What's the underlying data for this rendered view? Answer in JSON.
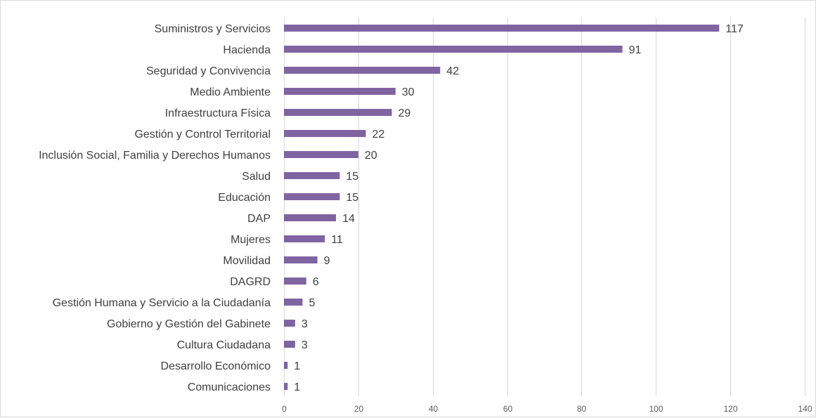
{
  "chart_data": {
    "type": "bar",
    "orientation": "horizontal",
    "title": "",
    "xlabel": "",
    "ylabel": "",
    "categories": [
      "Suministros y Servicios",
      "Hacienda",
      "Seguridad y Convivencia",
      "Medio Ambiente",
      "Infraestructura Física",
      "Gestión y Control Territorial",
      "Inclusión Social, Familia y Derechos Humanos",
      "Salud",
      "Educación",
      "DAP",
      "Mujeres",
      "Movilidad",
      "DAGRD",
      "Gestión Humana y Servicio a la Ciudadanía",
      "Gobierno y Gestión del Gabinete",
      "Cultura Ciudadana",
      "Desarrollo Económico",
      "Comunicaciones"
    ],
    "values": [
      117,
      91,
      42,
      30,
      29,
      22,
      20,
      15,
      15,
      14,
      11,
      9,
      6,
      5,
      3,
      3,
      1,
      1
    ],
    "xlim": [
      0,
      140
    ],
    "xticks": [
      0,
      20,
      40,
      60,
      80,
      100,
      120,
      140
    ],
    "grid": true,
    "legend": "none",
    "bar_color": "#8064a2"
  }
}
